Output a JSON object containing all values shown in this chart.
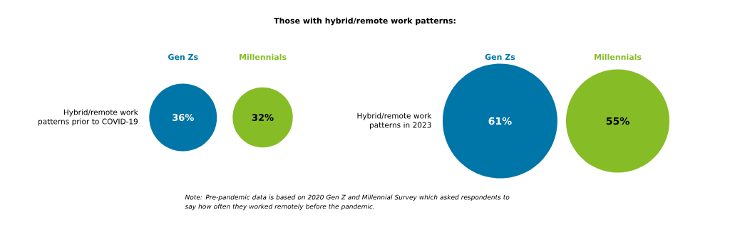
{
  "chart_data": {
    "type": "other",
    "title": "Those with hybrid/remote work patterns:",
    "categories": [
      "Hybrid/remote work patterns prior to COVID-19",
      "Hybrid/remote work patterns in 2023"
    ],
    "series": [
      {
        "name": "Gen Zs",
        "color": "#0076a8",
        "values": [
          36,
          61
        ],
        "value_labels": [
          "36%",
          "61%"
        ]
      },
      {
        "name": "Millennials",
        "color": "#86bc25",
        "values": [
          32,
          55
        ],
        "value_labels": [
          "32%",
          "55%"
        ]
      }
    ],
    "annotations": [
      "Note: Pre-pandemic data is based on 2020 Gen Z and Millennial Survey which asked respondents to say how often they worked remotely before the pandemic."
    ]
  }
}
